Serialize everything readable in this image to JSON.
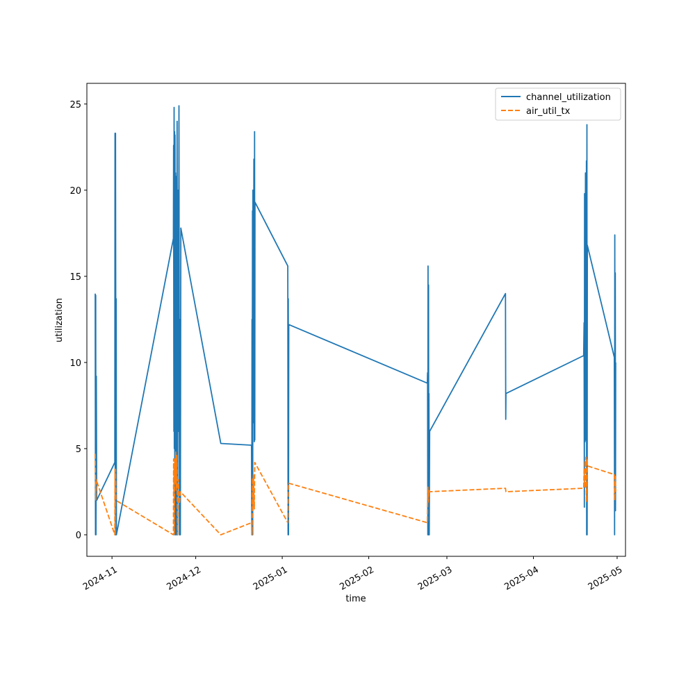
{
  "chart_data": {
    "type": "line",
    "title": "",
    "xlabel": "time",
    "ylabel": "utilization",
    "x_range": [
      "2024-10-23",
      "2025-05-04"
    ],
    "ylim": [
      -1.25,
      26.2
    ],
    "y_ticks": [
      0,
      5,
      10,
      15,
      20,
      25
    ],
    "x_ticks": [
      "2024-11-01",
      "2024-12-01",
      "2025-01-01",
      "2025-02-01",
      "2025-03-01",
      "2025-04-01",
      "2025-05-01"
    ],
    "x_tick_labels": [
      "2024-11",
      "2024-12",
      "2025-01",
      "2025-02",
      "2025-03",
      "2025-04",
      "2025-05"
    ],
    "grid": false,
    "legend_position": "top-right",
    "series": [
      {
        "name": "channel_utilization",
        "color": "#1f77b4",
        "dash": "solid",
        "points": [
          [
            "2024-10-26T00:00",
            14.0
          ],
          [
            "2024-10-26T02:00",
            0.0
          ],
          [
            "2024-10-26T04:00",
            13.9
          ],
          [
            "2024-10-26T06:00",
            0.0
          ],
          [
            "2024-10-26T09:00",
            9.2
          ],
          [
            "2024-10-26T12:00",
            2.0
          ],
          [
            "2024-11-02T00:00",
            4.2
          ],
          [
            "2024-11-02T02:00",
            23.3
          ],
          [
            "2024-11-02T04:00",
            0.0
          ],
          [
            "2024-11-02T06:00",
            23.3
          ],
          [
            "2024-11-02T08:00",
            14.5
          ],
          [
            "2024-11-02T10:00",
            0.0
          ],
          [
            "2024-11-02T12:00",
            13.7
          ],
          [
            "2024-11-02T14:00",
            0.0
          ],
          [
            "2024-11-23T00:00",
            17.2
          ],
          [
            "2024-11-23T02:00",
            22.6
          ],
          [
            "2024-11-23T04:00",
            6.0
          ],
          [
            "2024-11-23T06:00",
            24.8
          ],
          [
            "2024-11-23T08:00",
            5.0
          ],
          [
            "2024-11-23T10:00",
            23.4
          ],
          [
            "2024-11-23T12:00",
            0.0
          ],
          [
            "2024-11-23T14:00",
            23.2
          ],
          [
            "2024-11-23T16:00",
            5.2
          ],
          [
            "2024-11-23T18:00",
            21.0
          ],
          [
            "2024-11-23T20:00",
            0.0
          ],
          [
            "2024-11-24T00:00",
            20.8
          ],
          [
            "2024-11-24T04:00",
            0.0
          ],
          [
            "2024-11-24T08:00",
            24.0
          ],
          [
            "2024-11-24T12:00",
            0.0
          ],
          [
            "2024-11-24T16:00",
            20.0
          ],
          [
            "2024-11-24T20:00",
            6.0
          ],
          [
            "2024-11-25T00:00",
            24.9
          ],
          [
            "2024-11-25T04:00",
            0.0
          ],
          [
            "2024-11-25T08:00",
            12.5
          ],
          [
            "2024-11-25T12:00",
            0.0
          ],
          [
            "2024-11-25T16:00",
            17.8
          ],
          [
            "2024-12-10T00:00",
            5.3
          ],
          [
            "2024-12-21T00:00",
            5.2
          ],
          [
            "2024-12-21T02:00",
            0.0
          ],
          [
            "2024-12-21T04:00",
            12.5
          ],
          [
            "2024-12-21T06:00",
            3.4
          ],
          [
            "2024-12-21T08:00",
            18.8
          ],
          [
            "2024-12-21T10:00",
            0.0
          ],
          [
            "2024-12-21T12:00",
            20.0
          ],
          [
            "2024-12-21T16:00",
            6.5
          ],
          [
            "2024-12-21T20:00",
            21.8
          ],
          [
            "2024-12-22T00:00",
            5.4
          ],
          [
            "2024-12-22T02:00",
            23.4
          ],
          [
            "2024-12-22T04:00",
            5.5
          ],
          [
            "2024-12-22T06:00",
            19.3
          ],
          [
            "2025-01-03T00:00",
            15.6
          ],
          [
            "2025-01-03T02:00",
            0.0
          ],
          [
            "2025-01-03T04:00",
            13.7
          ],
          [
            "2025-01-03T06:00",
            0.0
          ],
          [
            "2025-01-03T08:00",
            12.2
          ],
          [
            "2025-02-22T00:00",
            8.8
          ],
          [
            "2025-02-22T02:00",
            9.4
          ],
          [
            "2025-02-22T04:00",
            0.0
          ],
          [
            "2025-02-22T06:00",
            15.6
          ],
          [
            "2025-02-22T08:00",
            0.0
          ],
          [
            "2025-02-22T10:00",
            14.5
          ],
          [
            "2025-02-22T12:00",
            0.0
          ],
          [
            "2025-02-22T14:00",
            8.2
          ],
          [
            "2025-02-22T16:00",
            0.0
          ],
          [
            "2025-02-22T20:00",
            6.0
          ],
          [
            "2025-03-22T00:00",
            14.0
          ],
          [
            "2025-03-22T02:00",
            6.7
          ],
          [
            "2025-03-22T04:00",
            8.2
          ],
          [
            "2025-04-19T00:00",
            10.4
          ],
          [
            "2025-04-19T04:00",
            12.3
          ],
          [
            "2025-04-19T06:00",
            1.6
          ],
          [
            "2025-04-19T08:00",
            19.8
          ],
          [
            "2025-04-19T12:00",
            5.4
          ],
          [
            "2025-04-19T16:00",
            21.0
          ],
          [
            "2025-04-19T20:00",
            5.5
          ],
          [
            "2025-04-20T00:00",
            21.7
          ],
          [
            "2025-04-20T02:00",
            0.0
          ],
          [
            "2025-04-20T04:00",
            23.8
          ],
          [
            "2025-04-20T06:00",
            0.0
          ],
          [
            "2025-04-20T08:00",
            16.8
          ],
          [
            "2025-04-30T00:00",
            10.3
          ],
          [
            "2025-04-30T02:00",
            0.0
          ],
          [
            "2025-04-30T04:00",
            17.4
          ],
          [
            "2025-04-30T06:00",
            1.5
          ],
          [
            "2025-04-30T08:00",
            15.2
          ],
          [
            "2025-04-30T10:00",
            1.4
          ],
          [
            "2025-04-30T12:00",
            10.0
          ]
        ]
      },
      {
        "name": "air_util_tx",
        "color": "#ff7f0e",
        "dash": "dashed",
        "points": [
          [
            "2024-10-26T00:00",
            4.7
          ],
          [
            "2024-10-26T04:00",
            2.0
          ],
          [
            "2024-10-26T08:00",
            3.2
          ],
          [
            "2024-11-02T00:00",
            0.0
          ],
          [
            "2024-11-02T02:00",
            3.8
          ],
          [
            "2024-11-02T04:00",
            0.0
          ],
          [
            "2024-11-02T06:00",
            3.8
          ],
          [
            "2024-11-02T10:00",
            2.0
          ],
          [
            "2024-11-23T00:00",
            0.0
          ],
          [
            "2024-11-23T02:00",
            4.4
          ],
          [
            "2024-11-23T04:00",
            2.5
          ],
          [
            "2024-11-23T06:00",
            4.0
          ],
          [
            "2024-11-23T08:00",
            0.0
          ],
          [
            "2024-11-23T12:00",
            4.4
          ],
          [
            "2024-11-23T16:00",
            3.0
          ],
          [
            "2024-11-23T20:00",
            4.8
          ],
          [
            "2024-11-24T00:00",
            2.6
          ],
          [
            "2024-11-24T06:00",
            4.6
          ],
          [
            "2024-11-24T12:00",
            0.0
          ],
          [
            "2024-11-24T18:00",
            3.2
          ],
          [
            "2024-11-25T04:00",
            1.8
          ],
          [
            "2024-11-25T12:00",
            2.5
          ],
          [
            "2024-12-10T00:00",
            0.0
          ],
          [
            "2024-12-21T00:00",
            0.7
          ],
          [
            "2024-12-21T04:00",
            0.0
          ],
          [
            "2024-12-21T08:00",
            3.3
          ],
          [
            "2024-12-21T12:00",
            1.6
          ],
          [
            "2024-12-21T16:00",
            3.5
          ],
          [
            "2024-12-22T00:00",
            1.5
          ],
          [
            "2024-12-22T04:00",
            4.2
          ],
          [
            "2025-01-03T00:00",
            0.7
          ],
          [
            "2025-01-03T04:00",
            3.0
          ],
          [
            "2025-02-22T00:00",
            0.7
          ],
          [
            "2025-02-22T04:00",
            2.8
          ],
          [
            "2025-02-22T08:00",
            1.9
          ],
          [
            "2025-02-22T12:00",
            2.6
          ],
          [
            "2025-02-22T18:00",
            2.5
          ],
          [
            "2025-03-22T00:00",
            2.7
          ],
          [
            "2025-03-22T04:00",
            2.5
          ],
          [
            "2025-04-19T00:00",
            2.7
          ],
          [
            "2025-04-19T04:00",
            3.8
          ],
          [
            "2025-04-19T08:00",
            2.8
          ],
          [
            "2025-04-19T12:00",
            4.3
          ],
          [
            "2025-04-19T16:00",
            2.7
          ],
          [
            "2025-04-19T20:00",
            4.5
          ],
          [
            "2025-04-20T00:00",
            1.9
          ],
          [
            "2025-04-20T04:00",
            4.4
          ],
          [
            "2025-04-20T08:00",
            4.0
          ],
          [
            "2025-04-30T00:00",
            3.5
          ],
          [
            "2025-04-30T04:00",
            2.0
          ],
          [
            "2025-04-30T08:00",
            3.4
          ],
          [
            "2025-04-30T12:00",
            2.5
          ]
        ]
      }
    ]
  }
}
